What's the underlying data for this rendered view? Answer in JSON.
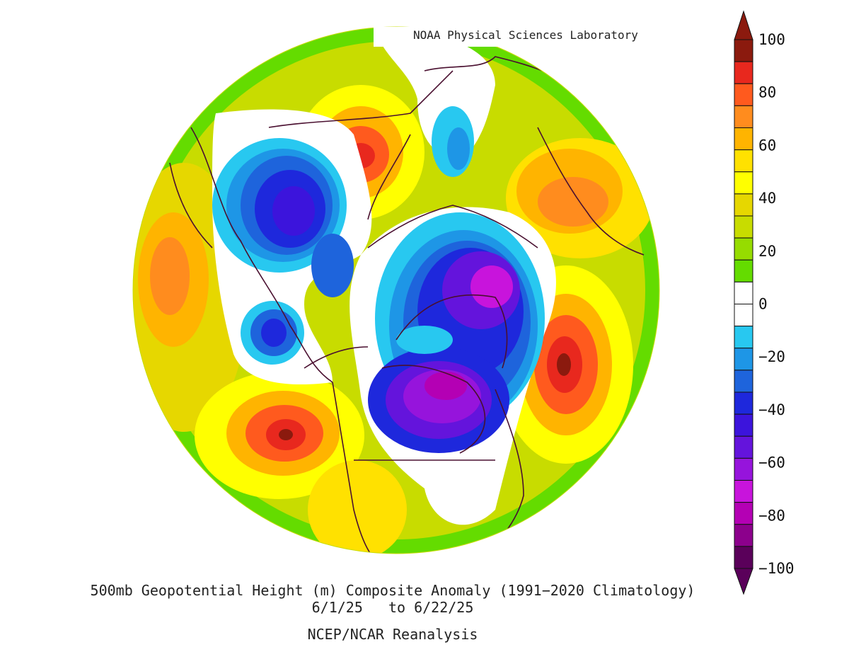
{
  "credit": "NOAA Physical Sciences Laboratory",
  "title": "500mb Geopotential Height (m) Composite Anomaly (1991−2020 Climatology)",
  "date_range": "6/1/25   to 6/22/25",
  "source": "NCEP/NCAR Reanalysis",
  "colorbar": {
    "labels": [
      "100",
      "80",
      "60",
      "40",
      "20",
      "0",
      "−20",
      "−40",
      "−60",
      "−80",
      "−100"
    ],
    "colors": [
      "#8b1a0e",
      "#e8281e",
      "#ff5a1e",
      "#ff8c1e",
      "#ffb400",
      "#ffe100",
      "#ffff00",
      "#e6d700",
      "#c8dc00",
      "#96dc00",
      "#64dc00",
      "#ffffff",
      "#ffffff",
      "#28c8f0",
      "#1e96e6",
      "#1e64dc",
      "#1e28dc",
      "#3c14dc",
      "#6414dc",
      "#9614dc",
      "#c814dc",
      "#b400b4",
      "#8c008c",
      "#5a005a"
    ]
  },
  "map": {
    "projection": "north-polar-stereographic",
    "anomaly_centers": [
      {
        "name": "north-pacific-high",
        "value": 100,
        "color": "#e8281e"
      },
      {
        "name": "alaska-trough",
        "value": -60,
        "color": "#6414dc"
      },
      {
        "name": "bering-trough",
        "value": -40,
        "color": "#1e28dc"
      },
      {
        "name": "siberia-high",
        "value": 90,
        "color": "#e8281e"
      },
      {
        "name": "greenland-trough",
        "value": -80,
        "color": "#c814dc"
      },
      {
        "name": "hudson-bay-trough",
        "value": -80,
        "color": "#b400b4"
      },
      {
        "name": "north-atlantic-high",
        "value": 100,
        "color": "#e8281e"
      },
      {
        "name": "europe-high",
        "value": 80,
        "color": "#ff5a1e"
      },
      {
        "name": "east-asia-high",
        "value": 60,
        "color": "#ff8c1e"
      }
    ]
  }
}
